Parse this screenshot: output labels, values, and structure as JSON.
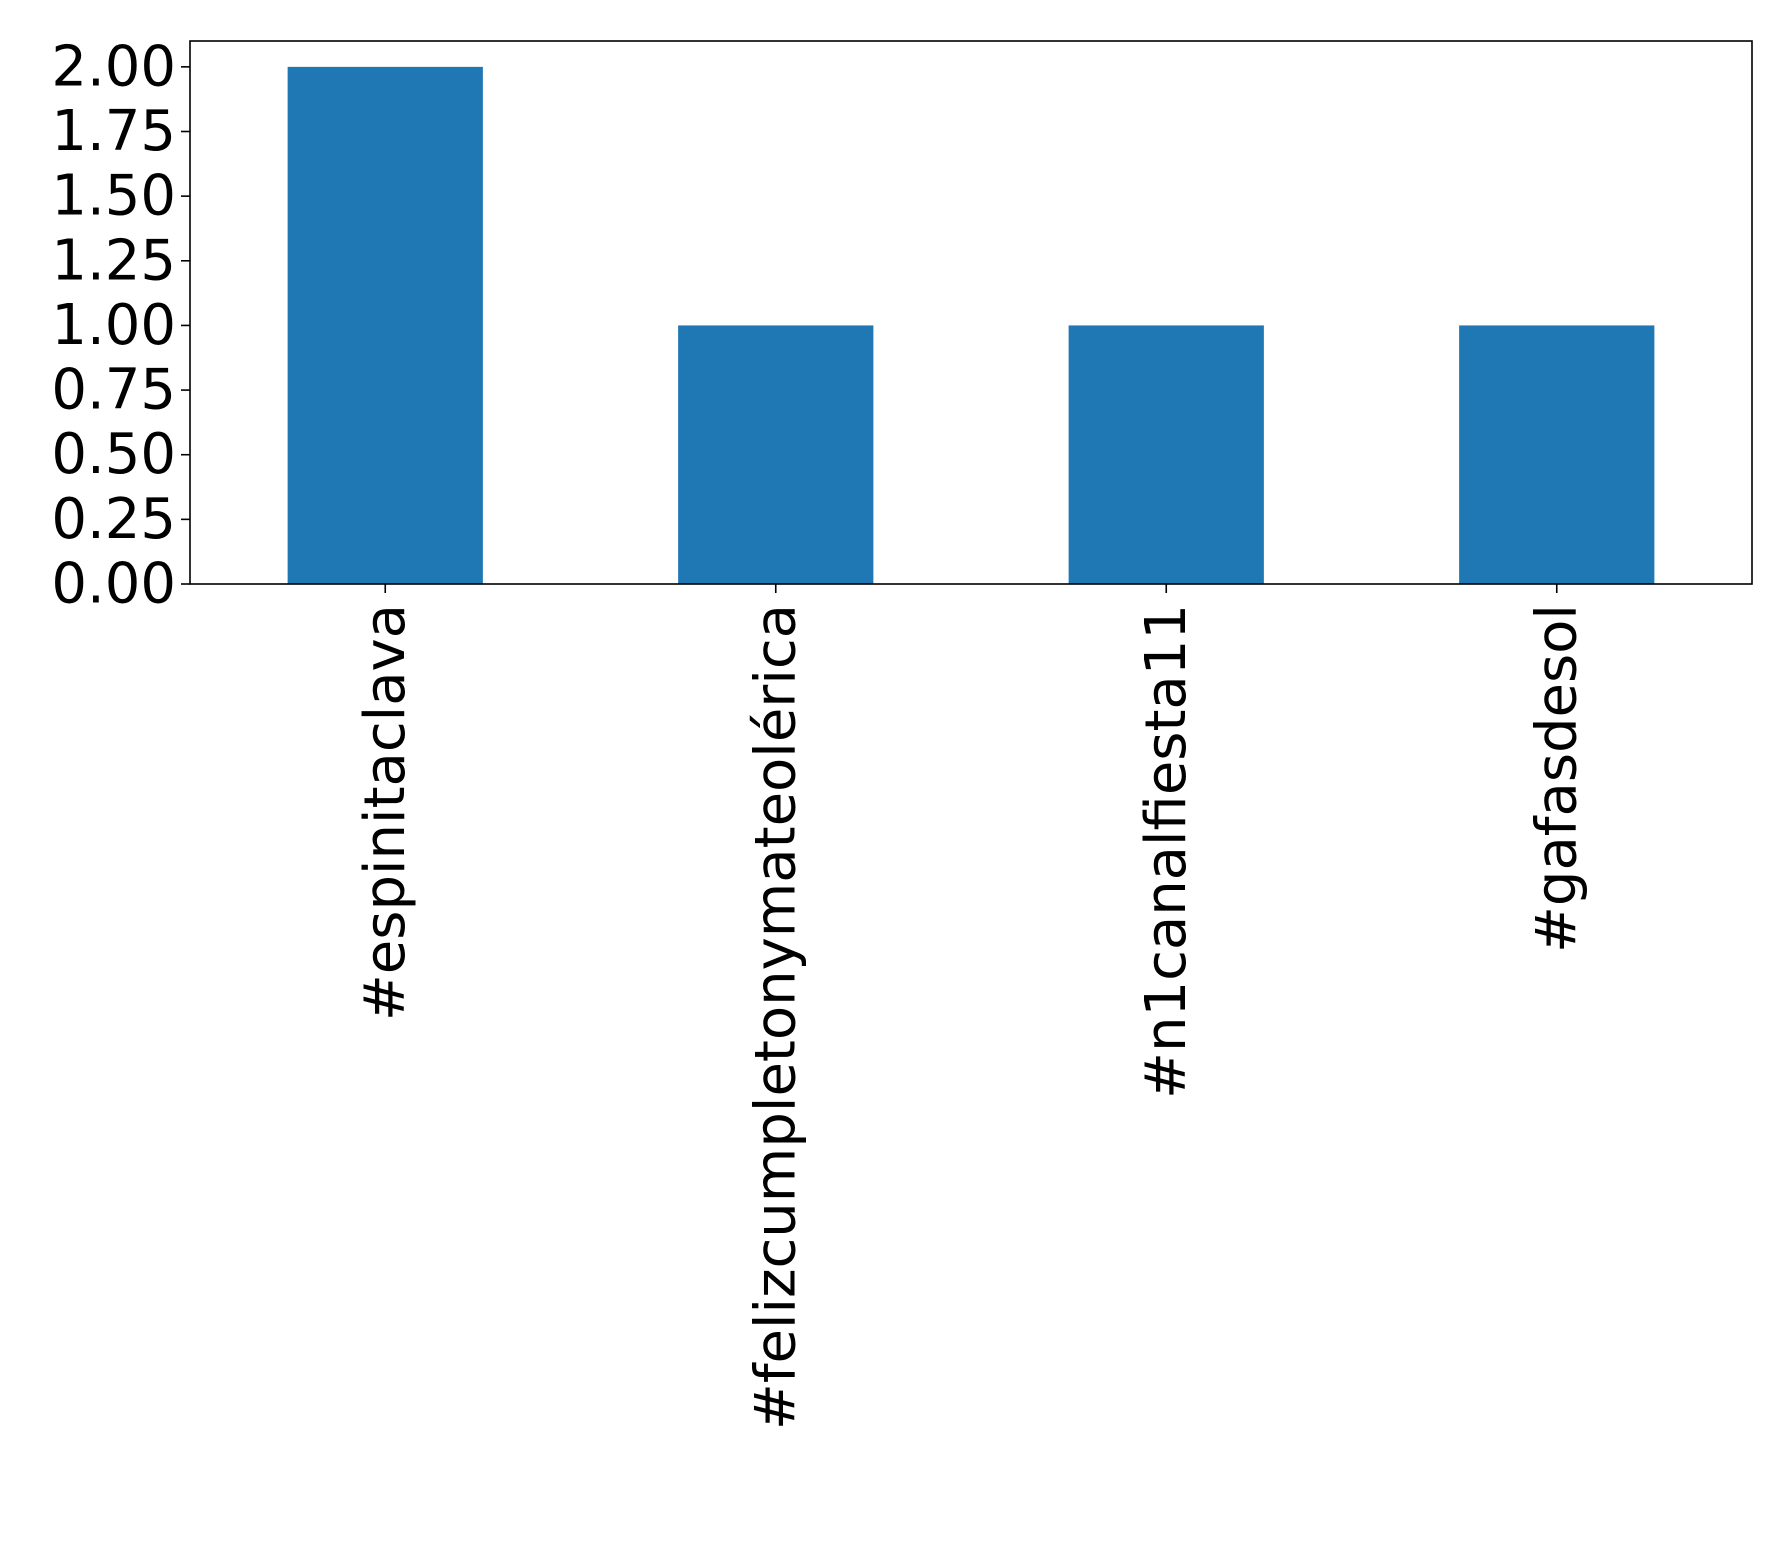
{
  "chart_data": {
    "type": "bar",
    "categories": [
      "#espinitaclava",
      "#felizcumpletonymateolérica",
      "#n1canalfiesta11",
      "#gafasdesol"
    ],
    "values": [
      2,
      1,
      1,
      1
    ],
    "title": "",
    "xlabel": "",
    "ylabel": "",
    "ylim": [
      0,
      2.1
    ],
    "yticks": [
      "0.00",
      "0.25",
      "0.50",
      "0.75",
      "1.00",
      "1.25",
      "1.50",
      "1.75",
      "2.00"
    ],
    "grid": false,
    "legend": false,
    "colors": {
      "bar": "#1f77b4",
      "axes": "#000000",
      "background": "#ffffff"
    }
  }
}
